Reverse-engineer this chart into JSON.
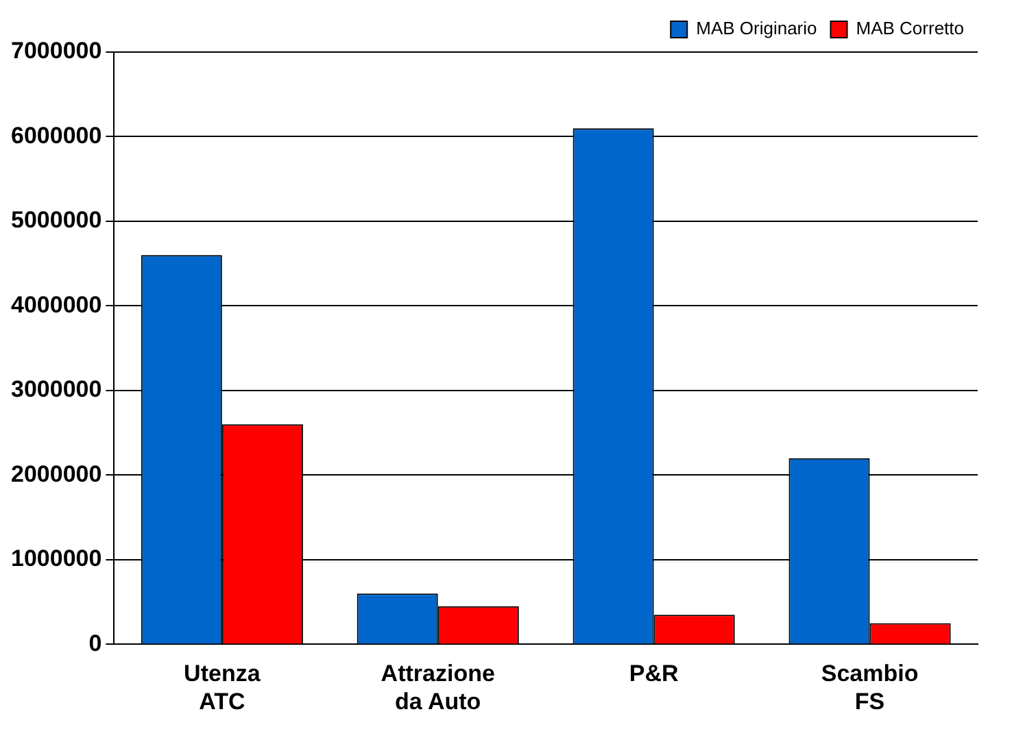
{
  "chart_data": {
    "type": "bar",
    "categories": [
      "Utenza ATC",
      "Attrazione da Auto",
      "P&R",
      "Scambio FS"
    ],
    "series": [
      {
        "name": "MAB Originario",
        "color": "#0066cc",
        "values": [
          4600000,
          600000,
          6100000,
          2200000
        ]
      },
      {
        "name": "MAB Corretto",
        "color": "#ff0000",
        "values": [
          2600000,
          450000,
          350000,
          250000
        ]
      }
    ],
    "ylim": [
      0,
      7000000
    ],
    "yticks": [
      0,
      1000000,
      2000000,
      3000000,
      4000000,
      5000000,
      6000000,
      7000000
    ],
    "grid": "y",
    "legend": "top right"
  }
}
